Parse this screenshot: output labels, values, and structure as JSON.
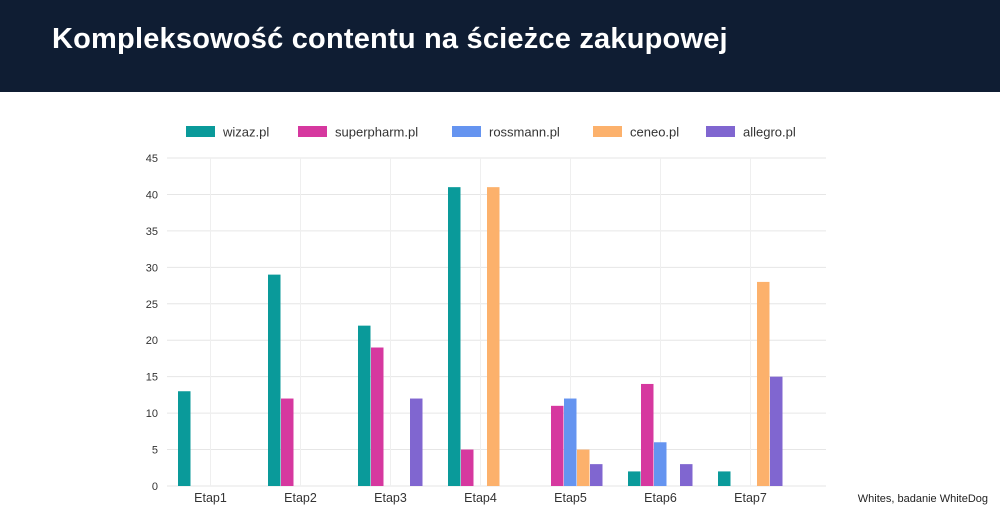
{
  "header": {
    "title": "Kompleksowość contentu na ścieżce zakupowej"
  },
  "source": "Whites, badanie WhiteDog",
  "chart_data": {
    "type": "bar",
    "categories": [
      "Etap1",
      "Etap2",
      "Etap3",
      "Etap4",
      "Etap5",
      "Etap6",
      "Etap7"
    ],
    "series": [
      {
        "name": "wizaz.pl",
        "color": "#0a9a9a",
        "values": [
          13,
          29,
          22,
          41,
          0,
          2,
          2
        ]
      },
      {
        "name": "superpharm.pl",
        "color": "#d6389f",
        "values": [
          0,
          12,
          19,
          5,
          11,
          14,
          0
        ]
      },
      {
        "name": "rossmann.pl",
        "color": "#6594f0",
        "values": [
          0,
          0,
          0,
          0,
          12,
          6,
          0
        ]
      },
      {
        "name": "ceneo.pl",
        "color": "#fcb16c",
        "values": [
          0,
          0,
          0,
          41,
          5,
          0,
          28
        ]
      },
      {
        "name": "allegro.pl",
        "color": "#8066d0",
        "values": [
          0,
          0,
          12,
          0,
          3,
          3,
          15
        ]
      }
    ],
    "ylim": [
      0,
      45
    ],
    "yticks": [
      0,
      5,
      10,
      15,
      20,
      25,
      30,
      35,
      40,
      45
    ],
    "grid": true,
    "legend": "top"
  }
}
